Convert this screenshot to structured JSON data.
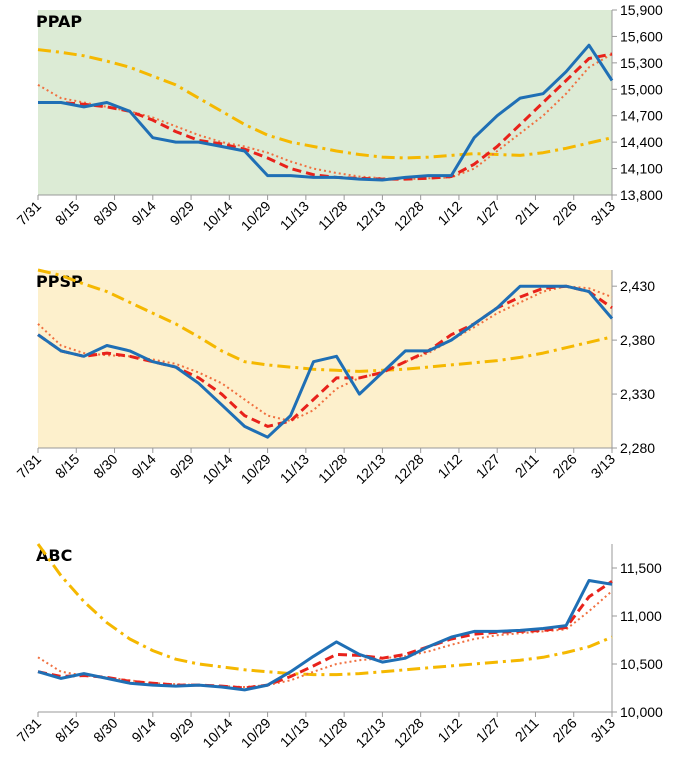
{
  "chart_data": [
    {
      "type": "line",
      "title": "PPAP",
      "background": "#dcebd5",
      "x": [
        0,
        9,
        18,
        27,
        36,
        45,
        54,
        63,
        72,
        81,
        90,
        99,
        108,
        117,
        126,
        135,
        144,
        153,
        162,
        171,
        180,
        189,
        198,
        207,
        216,
        225
      ],
      "xlim": [
        0,
        225
      ],
      "xticks": [
        {
          "value": 0,
          "label": "7/31"
        },
        {
          "value": 15,
          "label": "8/15"
        },
        {
          "value": 30,
          "label": "8/30"
        },
        {
          "value": 45,
          "label": "9/14"
        },
        {
          "value": 60,
          "label": "9/29"
        },
        {
          "value": 75,
          "label": "10/14"
        },
        {
          "value": 90,
          "label": "10/29"
        },
        {
          "value": 105,
          "label": "11/13"
        },
        {
          "value": 120,
          "label": "11/28"
        },
        {
          "value": 135,
          "label": "12/13"
        },
        {
          "value": 150,
          "label": "12/28"
        },
        {
          "value": 165,
          "label": "1/12"
        },
        {
          "value": 180,
          "label": "1/27"
        },
        {
          "value": 195,
          "label": "2/11"
        },
        {
          "value": 210,
          "label": "2/26"
        },
        {
          "value": 225,
          "label": "3/13"
        }
      ],
      "ylim": [
        13800,
        15900
      ],
      "yticks": [
        {
          "value": 13800,
          "label": "13,800"
        },
        {
          "value": 14100,
          "label": "14,100"
        },
        {
          "value": 14400,
          "label": "14,400"
        },
        {
          "value": 14700,
          "label": "14,700"
        },
        {
          "value": 15000,
          "label": "15,000"
        },
        {
          "value": 15300,
          "label": "15,300"
        },
        {
          "value": 15600,
          "label": "15,600"
        },
        {
          "value": 15900,
          "label": "15,900"
        }
      ],
      "series": [
        {
          "color": "#1f6fb5",
          "style": "solid",
          "values": [
            14850,
            14850,
            14800,
            14850,
            14750,
            14450,
            14400,
            14400,
            14350,
            14300,
            14020,
            14020,
            14000,
            14000,
            13980,
            13970,
            14000,
            14020,
            14020,
            14450,
            14700,
            14900,
            14950,
            15200,
            15500,
            15100
          ]
        },
        {
          "color": "#e8221b",
          "style": "dashed",
          "values": [
            14850,
            14850,
            14830,
            14800,
            14750,
            14650,
            14520,
            14420,
            14380,
            14320,
            14220,
            14100,
            14030,
            14000,
            13990,
            13980,
            13980,
            13990,
            14010,
            14150,
            14350,
            14600,
            14850,
            15100,
            15350,
            15400
          ]
        },
        {
          "color": "#f07040",
          "style": "dotted",
          "values": [
            15050,
            14900,
            14850,
            14800,
            14750,
            14680,
            14580,
            14480,
            14400,
            14350,
            14280,
            14180,
            14100,
            14050,
            14010,
            13990,
            13980,
            13990,
            14000,
            14100,
            14300,
            14500,
            14700,
            14950,
            15250,
            15400
          ]
        },
        {
          "color": "#f5b800",
          "style": "dashdot",
          "values": [
            15450,
            15420,
            15380,
            15320,
            15250,
            15150,
            15050,
            14900,
            14750,
            14600,
            14480,
            14400,
            14350,
            14300,
            14260,
            14230,
            14220,
            14230,
            14250,
            14270,
            14260,
            14250,
            14280,
            14330,
            14390,
            14450
          ]
        }
      ]
    },
    {
      "type": "line",
      "title": "PPSP",
      "background": "#fdf0cc",
      "x": [
        0,
        9,
        18,
        27,
        36,
        45,
        54,
        63,
        72,
        81,
        90,
        99,
        108,
        117,
        126,
        135,
        144,
        153,
        162,
        171,
        180,
        189,
        198,
        207,
        216,
        225
      ],
      "xlim": [
        0,
        225
      ],
      "xticks": [
        {
          "value": 0,
          "label": "7/31"
        },
        {
          "value": 15,
          "label": "8/15"
        },
        {
          "value": 30,
          "label": "8/30"
        },
        {
          "value": 45,
          "label": "9/14"
        },
        {
          "value": 60,
          "label": "9/29"
        },
        {
          "value": 75,
          "label": "10/14"
        },
        {
          "value": 90,
          "label": "10/29"
        },
        {
          "value": 105,
          "label": "11/13"
        },
        {
          "value": 120,
          "label": "11/28"
        },
        {
          "value": 135,
          "label": "12/13"
        },
        {
          "value": 150,
          "label": "12/28"
        },
        {
          "value": 165,
          "label": "1/12"
        },
        {
          "value": 180,
          "label": "1/27"
        },
        {
          "value": 195,
          "label": "2/11"
        },
        {
          "value": 210,
          "label": "2/26"
        },
        {
          "value": 225,
          "label": "3/13"
        }
      ],
      "ylim": [
        2280,
        2445
      ],
      "yticks": [
        {
          "value": 2280,
          "label": "2,280"
        },
        {
          "value": 2330,
          "label": "2,330"
        },
        {
          "value": 2380,
          "label": "2,380"
        },
        {
          "value": 2430,
          "label": "2,430"
        }
      ],
      "series": [
        {
          "color": "#1f6fb5",
          "style": "solid",
          "values": [
            2385,
            2370,
            2365,
            2375,
            2370,
            2360,
            2355,
            2340,
            2320,
            2300,
            2290,
            2310,
            2360,
            2365,
            2330,
            2350,
            2370,
            2370,
            2380,
            2395,
            2410,
            2430,
            2430,
            2430,
            2425,
            2400
          ]
        },
        {
          "color": "#e8221b",
          "style": "dashed",
          "values": [
            2385,
            2370,
            2365,
            2368,
            2365,
            2360,
            2355,
            2345,
            2330,
            2310,
            2300,
            2305,
            2325,
            2345,
            2345,
            2350,
            2360,
            2370,
            2385,
            2395,
            2410,
            2420,
            2428,
            2430,
            2425,
            2410
          ]
        },
        {
          "color": "#f07040",
          "style": "dotted",
          "values": [
            2395,
            2375,
            2368,
            2366,
            2365,
            2362,
            2358,
            2350,
            2340,
            2325,
            2310,
            2305,
            2315,
            2335,
            2345,
            2350,
            2360,
            2368,
            2380,
            2392,
            2405,
            2415,
            2425,
            2430,
            2428,
            2420
          ]
        },
        {
          "color": "#f5b800",
          "style": "dashdot",
          "values": [
            2445,
            2440,
            2432,
            2425,
            2415,
            2405,
            2395,
            2383,
            2370,
            2360,
            2357,
            2355,
            2353,
            2352,
            2351,
            2352,
            2353,
            2355,
            2357,
            2359,
            2361,
            2364,
            2368,
            2373,
            2378,
            2383
          ]
        }
      ]
    },
    {
      "type": "line",
      "title": "ABC",
      "x": [
        0,
        9,
        18,
        27,
        36,
        45,
        54,
        63,
        72,
        81,
        90,
        99,
        108,
        117,
        126,
        135,
        144,
        153,
        162,
        171,
        180,
        189,
        198,
        207,
        216,
        225
      ],
      "xlim": [
        0,
        225
      ],
      "xticks": [
        {
          "value": 0,
          "label": "7/31"
        },
        {
          "value": 15,
          "label": "8/15"
        },
        {
          "value": 30,
          "label": "8/30"
        },
        {
          "value": 45,
          "label": "9/14"
        },
        {
          "value": 60,
          "label": "9/29"
        },
        {
          "value": 75,
          "label": "10/14"
        },
        {
          "value": 90,
          "label": "10/29"
        },
        {
          "value": 105,
          "label": "11/13"
        },
        {
          "value": 120,
          "label": "11/28"
        },
        {
          "value": 135,
          "label": "12/13"
        },
        {
          "value": 150,
          "label": "12/28"
        },
        {
          "value": 165,
          "label": "1/12"
        },
        {
          "value": 180,
          "label": "1/27"
        },
        {
          "value": 195,
          "label": "2/11"
        },
        {
          "value": 210,
          "label": "2/26"
        },
        {
          "value": 225,
          "label": "3/13"
        }
      ],
      "ylim": [
        10000,
        11750
      ],
      "yticks": [
        {
          "value": 10000,
          "label": "10,000"
        },
        {
          "value": 10500,
          "label": "10,500"
        },
        {
          "value": 11000,
          "label": "11,000"
        },
        {
          "value": 11500,
          "label": "11,500"
        }
      ],
      "series": [
        {
          "color": "#1f6fb5",
          "style": "solid",
          "values": [
            10420,
            10350,
            10400,
            10350,
            10300,
            10280,
            10270,
            10280,
            10260,
            10230,
            10280,
            10420,
            10580,
            10730,
            10600,
            10520,
            10560,
            10680,
            10780,
            10840,
            10840,
            10850,
            10870,
            10900,
            11370,
            11330
          ]
        },
        {
          "color": "#e8221b",
          "style": "dashed",
          "values": [
            10420,
            10370,
            10380,
            10360,
            10320,
            10300,
            10280,
            10280,
            10270,
            10250,
            10280,
            10370,
            10480,
            10600,
            10590,
            10560,
            10600,
            10680,
            10760,
            10810,
            10830,
            10840,
            10850,
            10880,
            11200,
            11360
          ]
        },
        {
          "color": "#f07040",
          "style": "dotted",
          "values": [
            10570,
            10420,
            10380,
            10360,
            10330,
            10300,
            10290,
            10280,
            10270,
            10260,
            10280,
            10330,
            10420,
            10500,
            10540,
            10560,
            10580,
            10630,
            10700,
            10760,
            10800,
            10820,
            10840,
            10860,
            11050,
            11260
          ]
        },
        {
          "color": "#f5b800",
          "style": "dashdot",
          "values": [
            11750,
            11420,
            11150,
            10930,
            10760,
            10640,
            10550,
            10500,
            10470,
            10440,
            10420,
            10400,
            10390,
            10390,
            10400,
            10420,
            10440,
            10460,
            10480,
            10500,
            10520,
            10540,
            10570,
            10620,
            10680,
            10780
          ]
        }
      ]
    }
  ]
}
